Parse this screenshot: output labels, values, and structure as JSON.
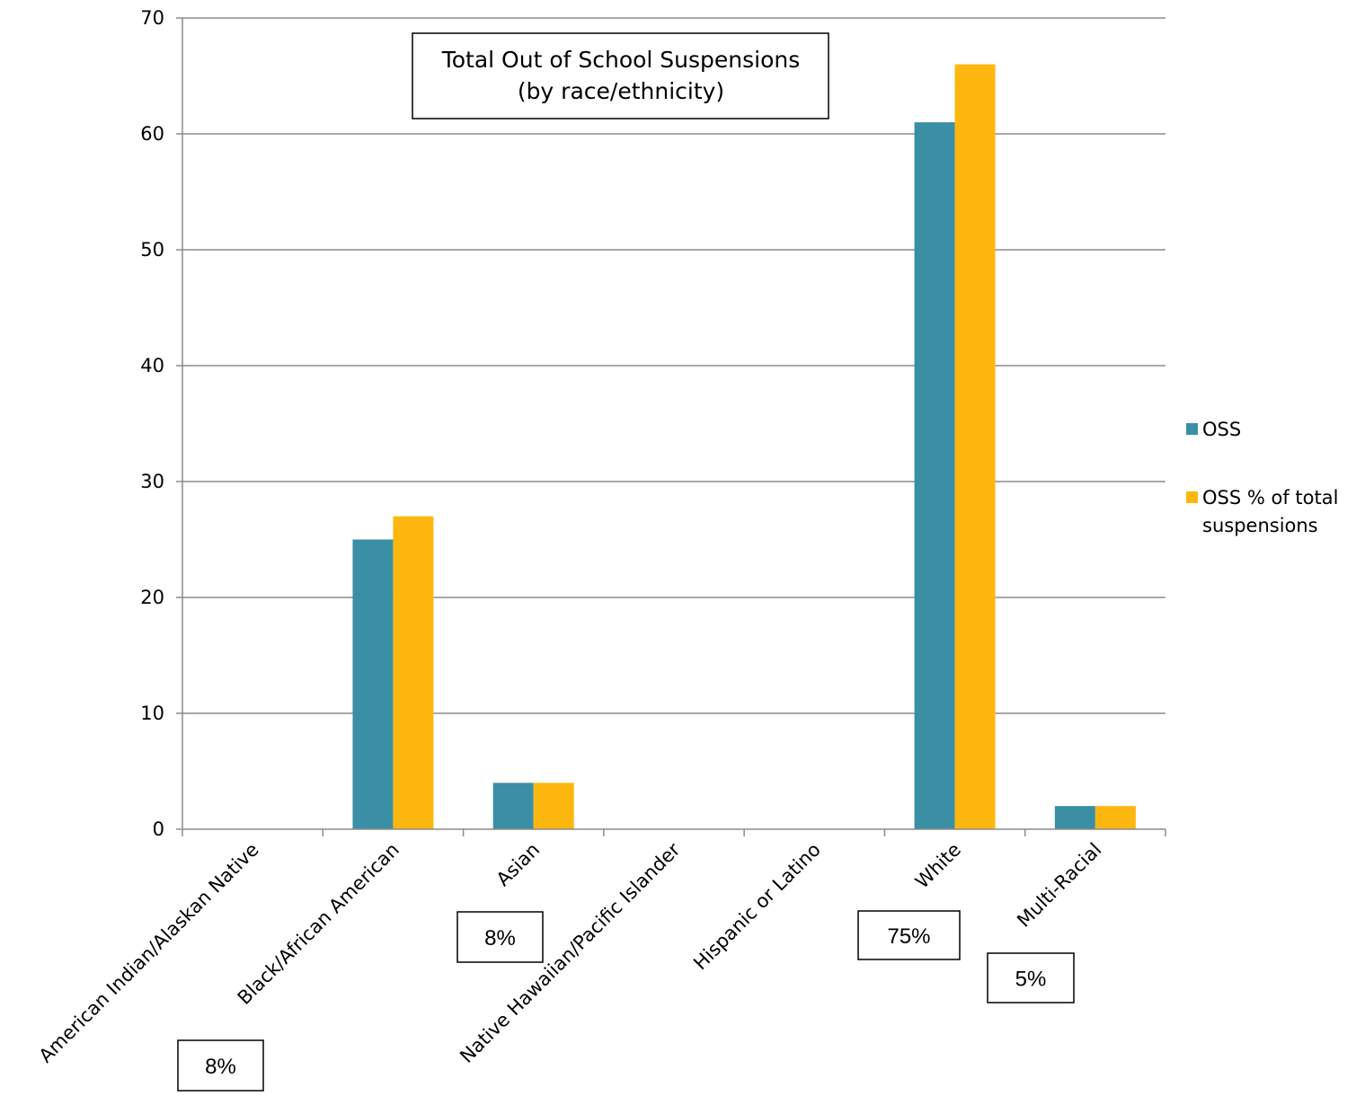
{
  "chart_data": {
    "type": "bar",
    "title": "Total Out of School Suspensions",
    "subtitle": "(by race/ethnicity)",
    "categories": [
      "American Indian/Alaskan Native",
      "Black/African American",
      "Asian",
      "Native Hawaiian/Pacific Islander",
      "Hispanic or Latino",
      "White",
      "Multi-Racial"
    ],
    "series": [
      {
        "name": "OSS",
        "color": "#3A8FA5",
        "values": [
          0,
          25,
          4,
          0,
          0,
          61,
          2
        ]
      },
      {
        "name": "OSS % of total suspensions",
        "color": "#FDB70F",
        "values": [
          0,
          27,
          4,
          0,
          0,
          66,
          2
        ]
      }
    ],
    "ylim": [
      0,
      70
    ],
    "yticks": [
      "0",
      "10",
      "20",
      "30",
      "40",
      "50",
      "60",
      "70"
    ],
    "grid": true,
    "legend_position": "right",
    "annotations": [
      {
        "text": "8%",
        "category_index": 0
      },
      {
        "text": "8%",
        "category_index": 2
      },
      {
        "text": "75%",
        "category_index": 5
      },
      {
        "text": "5%",
        "category_index": 6
      }
    ]
  }
}
